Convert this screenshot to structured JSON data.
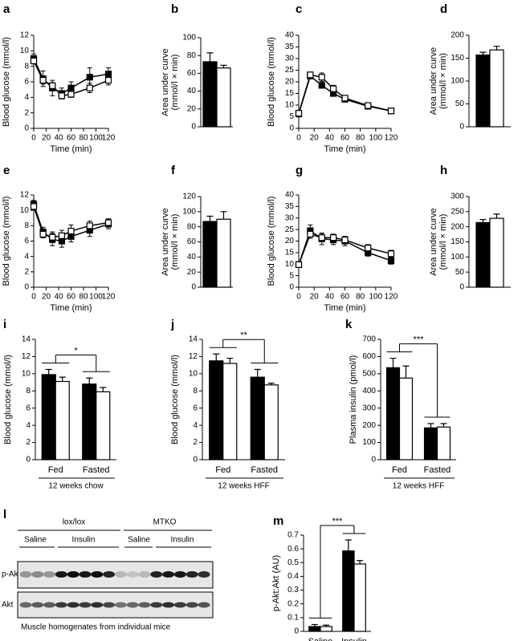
{
  "chart_data": [
    {
      "type": "line",
      "label": "a",
      "ylabel": "Blood glucose (mmol/l)",
      "xlabel": "Time (min)",
      "xlim": [
        0,
        120
      ],
      "xticks": [
        0,
        20,
        40,
        60,
        80,
        100,
        120
      ],
      "ylim": [
        0,
        12
      ],
      "yticks": [
        0,
        2,
        4,
        6,
        8,
        10,
        12
      ],
      "x": [
        0,
        15,
        30,
        45,
        60,
        90,
        120
      ],
      "series": [
        {
          "color": "#000000",
          "values": [
            9.0,
            6.4,
            5.2,
            4.5,
            5.2,
            6.6,
            7.0
          ],
          "errors": [
            0.6,
            1.0,
            1.0,
            0.7,
            0.8,
            1.2,
            0.8
          ]
        },
        {
          "color": "#ffffff",
          "values": [
            8.7,
            6.2,
            5.5,
            4.2,
            4.4,
            5.2,
            6.2
          ],
          "errors": [
            0.4,
            0.5,
            0.4,
            0.4,
            0.4,
            0.6,
            0.6
          ]
        }
      ]
    },
    {
      "type": "bar",
      "label": "b",
      "ylabel": [
        "Area under curve",
        "(mmol/l × min)"
      ],
      "ylim": [
        0,
        100
      ],
      "yticks": [
        0,
        20,
        40,
        60,
        80,
        100
      ],
      "categories": [
        null
      ],
      "series": [
        {
          "color": "#000000",
          "values": [
            73
          ],
          "errors": [
            10
          ]
        },
        {
          "color": "#ffffff",
          "values": [
            66
          ],
          "errors": [
            3
          ]
        }
      ]
    },
    {
      "type": "line",
      "label": "c",
      "ylabel": "Blood glucose (mmol/l)",
      "xlabel": "Time (min)",
      "xlim": [
        0,
        120
      ],
      "xticks": [
        0,
        20,
        40,
        60,
        80,
        100,
        120
      ],
      "ylim": [
        0,
        40
      ],
      "yticks": [
        0,
        5,
        10,
        15,
        20,
        25,
        30,
        35,
        40
      ],
      "x": [
        0,
        15,
        30,
        45,
        60,
        90,
        120
      ],
      "series": [
        {
          "color": "#000000",
          "values": [
            6.2,
            22.5,
            18.5,
            15.0,
            12.5,
            9.5,
            7.5
          ],
          "errors": [
            0.8,
            1.0,
            1.2,
            1.0,
            0.6,
            0.5,
            0.4
          ]
        },
        {
          "color": "#ffffff",
          "values": [
            6.5,
            23.0,
            22.0,
            17.0,
            13.0,
            9.8,
            7.5
          ],
          "errors": [
            0.6,
            1.2,
            1.8,
            1.5,
            0.7,
            0.5,
            0.4
          ]
        }
      ]
    },
    {
      "type": "bar",
      "label": "d",
      "ylabel": [
        "Area under curve",
        "(mmol/l × min)"
      ],
      "ylim": [
        0,
        200
      ],
      "yticks": [
        0,
        50,
        100,
        150,
        200
      ],
      "categories": [
        null
      ],
      "series": [
        {
          "color": "#000000",
          "values": [
            157
          ],
          "errors": [
            6
          ]
        },
        {
          "color": "#ffffff",
          "values": [
            168
          ],
          "errors": [
            8
          ]
        }
      ]
    },
    {
      "type": "line",
      "label": "e",
      "ylabel": "Blood glucose (mmol/l)",
      "xlabel": "Time (min)",
      "xlim": [
        0,
        120
      ],
      "xticks": [
        0,
        20,
        40,
        60,
        80,
        100,
        120
      ],
      "ylim": [
        0,
        12
      ],
      "yticks": [
        0,
        2,
        4,
        6,
        8,
        10,
        12
      ],
      "x": [
        0,
        15,
        30,
        45,
        60,
        90,
        120
      ],
      "series": [
        {
          "color": "#000000",
          "values": [
            10.8,
            7.2,
            6.2,
            6.0,
            6.6,
            7.4,
            8.2
          ],
          "errors": [
            0.5,
            0.6,
            0.8,
            0.8,
            0.7,
            0.8,
            0.6
          ]
        },
        {
          "color": "#ffffff",
          "values": [
            10.5,
            6.9,
            6.5,
            6.7,
            7.3,
            8.0,
            8.4
          ],
          "errors": [
            0.4,
            0.5,
            0.7,
            0.7,
            0.8,
            0.6,
            0.5
          ]
        }
      ]
    },
    {
      "type": "bar",
      "label": "f",
      "ylabel": [
        "Area under curve",
        "(mmol/l × min)"
      ],
      "ylim": [
        0,
        120
      ],
      "yticks": [
        0,
        20,
        40,
        60,
        80,
        100,
        120
      ],
      "categories": [
        null
      ],
      "series": [
        {
          "color": "#000000",
          "values": [
            87
          ],
          "errors": [
            7
          ]
        },
        {
          "color": "#ffffff",
          "values": [
            90
          ],
          "errors": [
            10
          ]
        }
      ]
    },
    {
      "type": "line",
      "label": "g",
      "ylabel": "Blood glucose (mmol/l)",
      "xlabel": "Time (min)",
      "xlim": [
        0,
        120
      ],
      "xticks": [
        0,
        20,
        40,
        60,
        80,
        100,
        120
      ],
      "ylim": [
        0,
        40
      ],
      "yticks": [
        0,
        5,
        10,
        15,
        20,
        25,
        30,
        35,
        40
      ],
      "x": [
        0,
        15,
        30,
        45,
        60,
        90,
        120
      ],
      "series": [
        {
          "color": "#000000",
          "values": [
            9.8,
            24.5,
            21.0,
            20.5,
            20.0,
            15.0,
            11.5
          ],
          "errors": [
            0.6,
            2.5,
            2.5,
            2.0,
            2.0,
            1.5,
            1.5
          ]
        },
        {
          "color": "#ffffff",
          "values": [
            9.8,
            23.0,
            21.5,
            21.5,
            20.5,
            17.0,
            14.5
          ],
          "errors": [
            0.5,
            1.8,
            1.8,
            1.5,
            1.6,
            1.5,
            1.5
          ]
        }
      ]
    },
    {
      "type": "bar",
      "label": "h",
      "ylabel": [
        "Area under curve",
        "(mmol/l × min)"
      ],
      "ylim": [
        0,
        300
      ],
      "yticks": [
        0,
        50,
        100,
        150,
        200,
        250,
        300
      ],
      "categories": [
        null
      ],
      "series": [
        {
          "color": "#000000",
          "values": [
            214
          ],
          "errors": [
            10
          ]
        },
        {
          "color": "#ffffff",
          "values": [
            228
          ],
          "errors": [
            14
          ]
        }
      ]
    },
    {
      "type": "bar",
      "label": "i",
      "ylabel": "Blood glucose (mmol/l)",
      "group_label": "12 weeks chow",
      "annotation": "*",
      "ylim": [
        0,
        14
      ],
      "yticks": [
        0,
        2,
        4,
        6,
        8,
        10,
        12,
        14
      ],
      "categories": [
        "Fed",
        "Fasted"
      ],
      "series": [
        {
          "color": "#000000",
          "values": [
            9.9,
            8.8
          ],
          "errors": [
            0.6,
            0.7
          ]
        },
        {
          "color": "#ffffff",
          "values": [
            9.1,
            7.9
          ],
          "errors": [
            0.5,
            0.5
          ]
        }
      ]
    },
    {
      "type": "bar",
      "label": "j",
      "ylabel": "Blood glucose (mmol/l)",
      "group_label": "12 weeks HFF",
      "annotation": "**",
      "ylim": [
        0,
        14
      ],
      "yticks": [
        0,
        2,
        4,
        6,
        8,
        10,
        12,
        14
      ],
      "categories": [
        "Fed",
        "Fasted"
      ],
      "series": [
        {
          "color": "#000000",
          "values": [
            11.5,
            9.6
          ],
          "errors": [
            0.8,
            0.9
          ]
        },
        {
          "color": "#ffffff",
          "values": [
            11.2,
            8.7
          ],
          "errors": [
            0.6,
            0.2
          ]
        }
      ]
    },
    {
      "type": "bar",
      "label": "k",
      "ylabel": "Plasma insulin (pmol/l)",
      "group_label": "12 weeks HFF",
      "annotation": "***",
      "ylim": [
        0,
        700
      ],
      "yticks": [
        0,
        100,
        200,
        300,
        400,
        500,
        600,
        700
      ],
      "categories": [
        "Fed",
        "Fasted"
      ],
      "series": [
        {
          "color": "#000000",
          "values": [
            535,
            185
          ],
          "errors": [
            55,
            25
          ]
        },
        {
          "color": "#ffffff",
          "values": [
            475,
            190
          ],
          "errors": [
            70,
            20
          ]
        }
      ]
    },
    {
      "type": "bar",
      "label": "m",
      "ylabel": "p-Akt:Akt (AU)",
      "annotation": "***",
      "ylim": [
        0,
        0.7
      ],
      "yticks": [
        0,
        0.1,
        0.2,
        0.3,
        0.4,
        0.5,
        0.6,
        0.7
      ],
      "categories": [
        "Saline",
        "Insulin"
      ],
      "series": [
        {
          "color": "#000000",
          "values": [
            0.035,
            0.585
          ],
          "errors": [
            0.015,
            0.08
          ]
        },
        {
          "color": "#ffffff",
          "values": [
            0.035,
            0.49
          ],
          "errors": [
            0.01,
            0.025
          ]
        }
      ]
    }
  ],
  "blot": {
    "label": "l",
    "groups": [
      "lox/lox",
      "MTKO"
    ],
    "treatments": [
      "Saline",
      "Insulin",
      "Saline",
      "Insulin"
    ],
    "rows": [
      "p-Akt",
      "Akt"
    ],
    "caption": "Muscle homogenates from individual mice"
  }
}
